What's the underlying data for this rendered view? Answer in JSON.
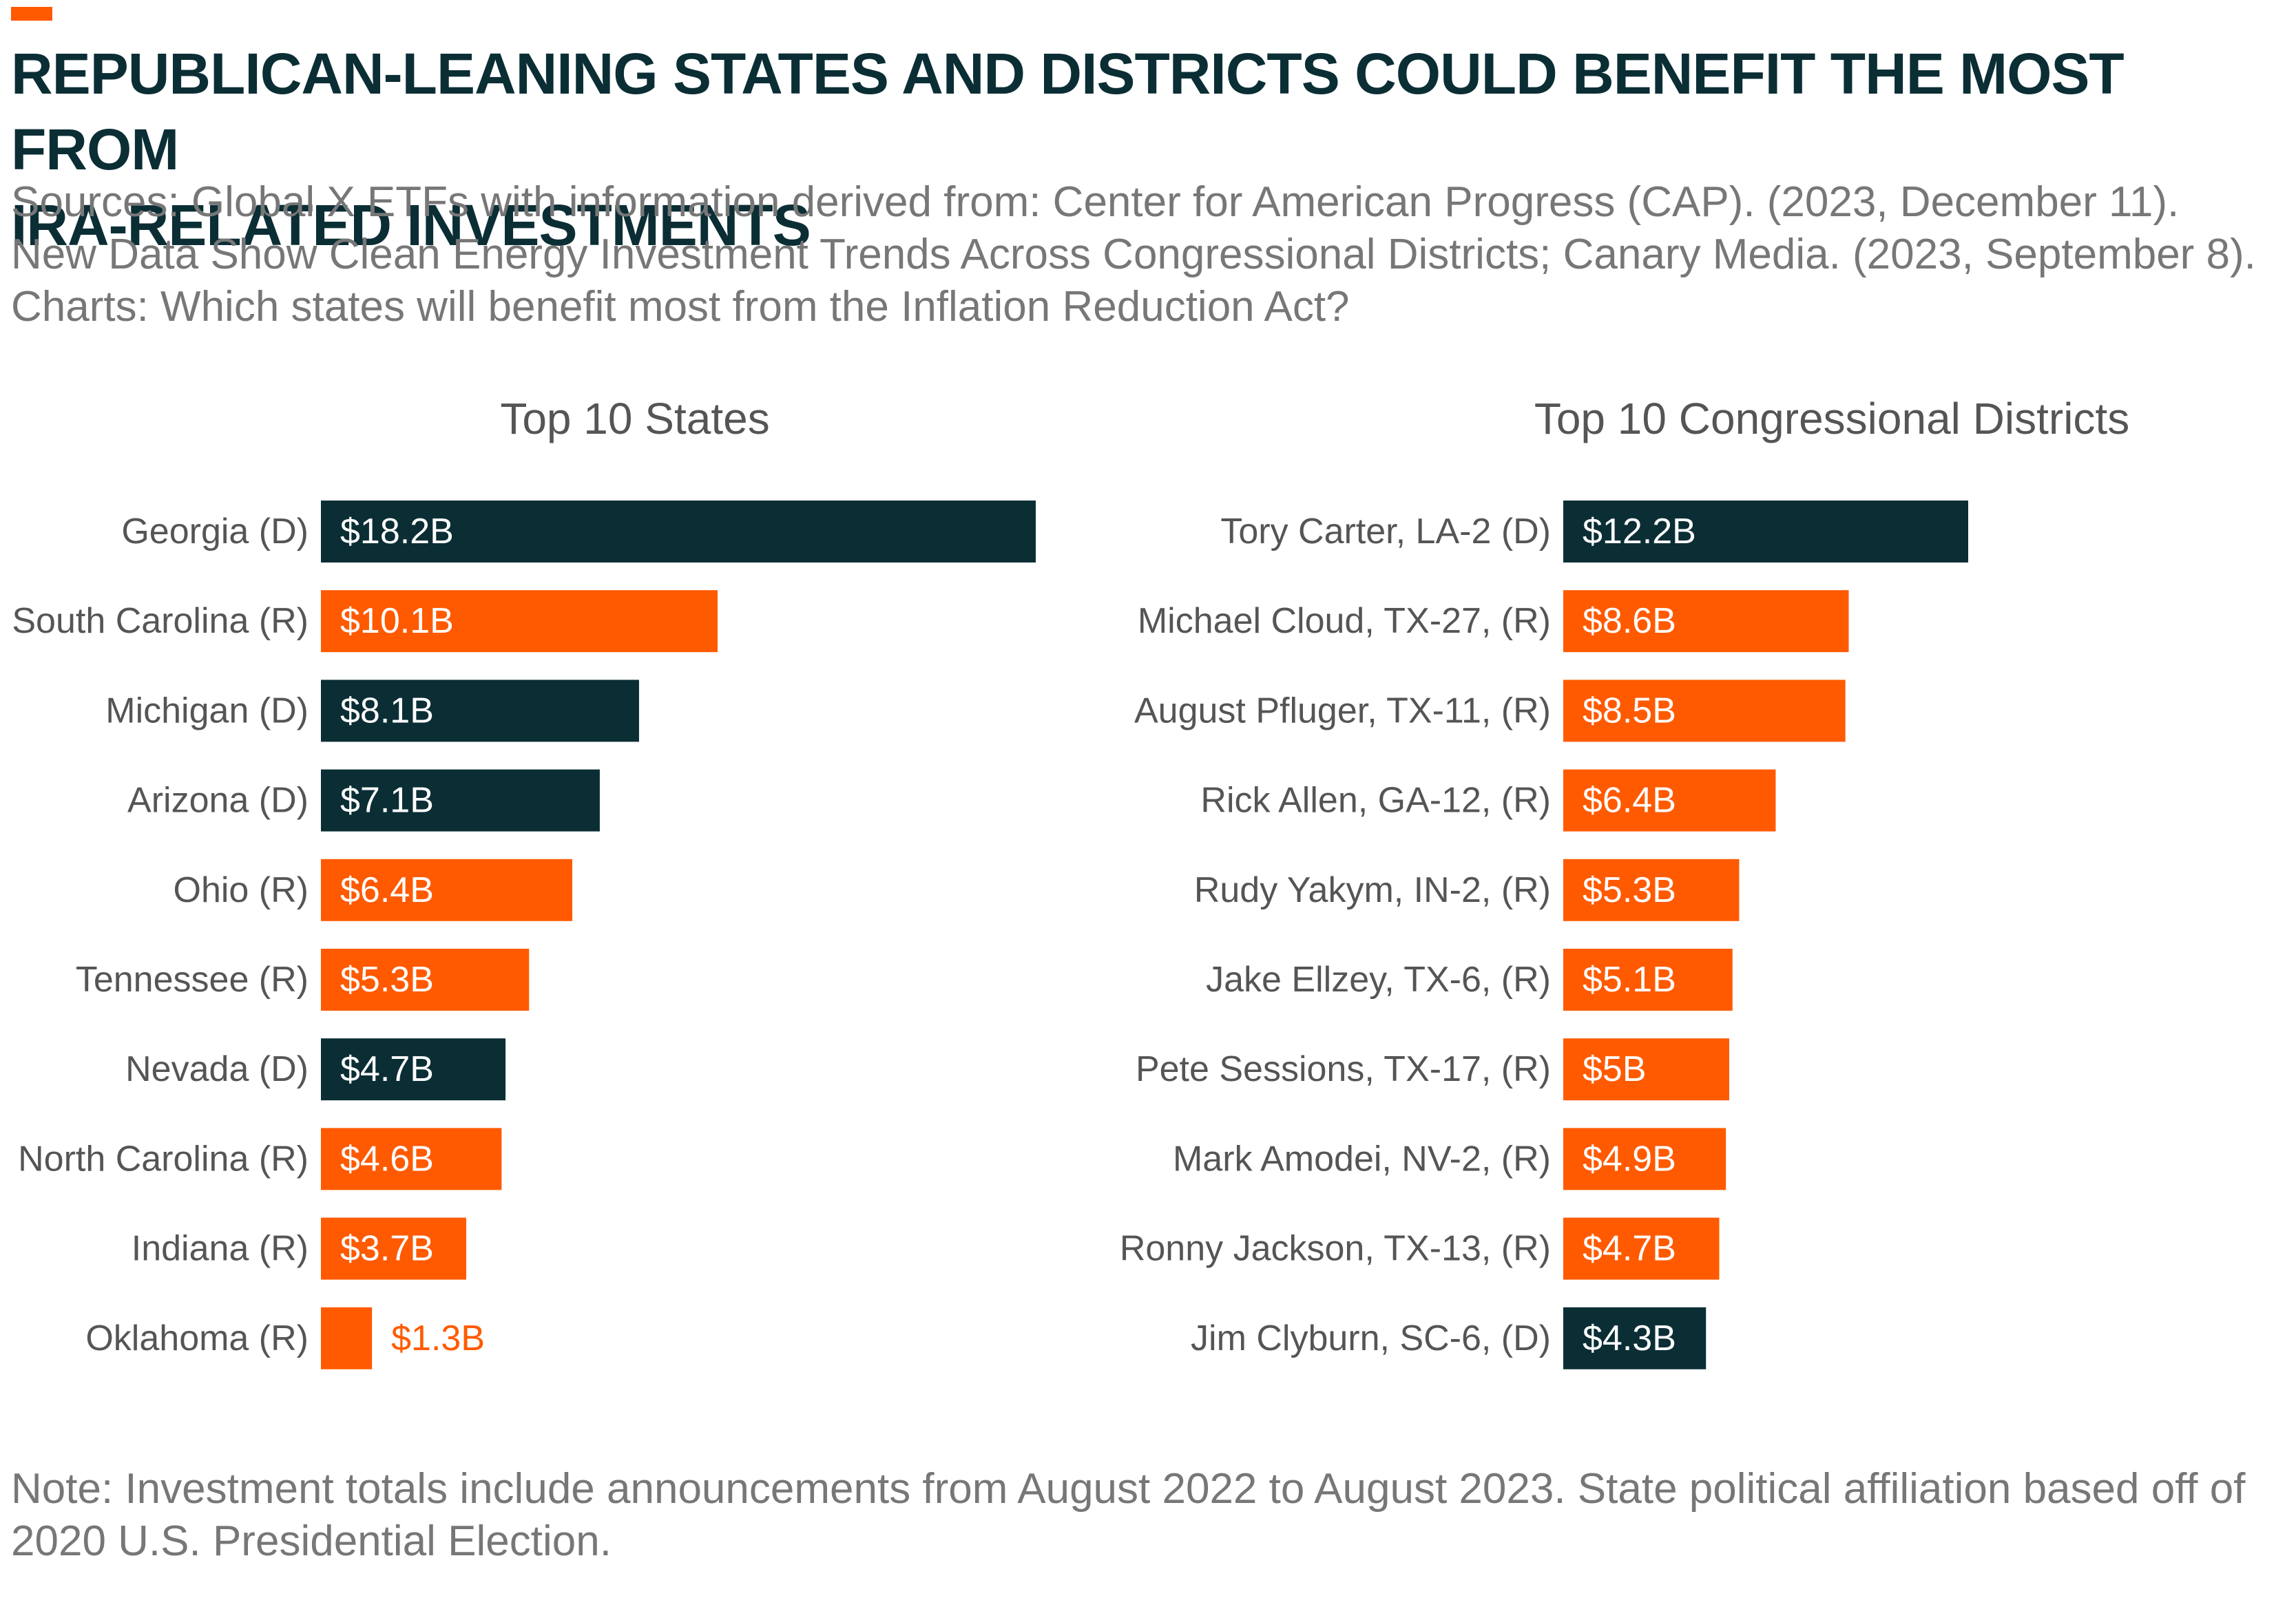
{
  "header": {
    "title_line1": "REPUBLICAN-LEANING STATES AND DISTRICTS COULD BENEFIT THE MOST FROM",
    "title_line2": "IRA-RELATED INVESTMENTS",
    "sources": [
      "Sources: Global X ETFs with information derived from: Center for American Progress (CAP). (2023, December 11).",
      "New Data Show Clean Energy Investment Trends Across Congressional Districts; Canary Media. (2023, September 8).",
      "Charts: Which states will benefit most from the Inflation Reduction Act?"
    ]
  },
  "note": {
    "line1": "Note: Investment totals include announcements from August 2022 to August 2023. State political affiliation based off of",
    "line2": "2020 U.S. Presidential Election."
  },
  "colors": {
    "democrat": "#0b2e35",
    "republican": "#ff5a00",
    "accent": "#ff5a00",
    "label_text": "#555555"
  },
  "chart_data": [
    {
      "type": "bar",
      "orientation": "horizontal",
      "title": "Top 10 States",
      "categories": [
        "Georgia (D)",
        "South Carolina (R)",
        "Michigan (D)",
        "Arizona (D)",
        "Ohio (R)",
        "Tennessee (R)",
        "Nevada (D)",
        "North Carolina (R)",
        "Indiana (R)",
        "Oklahoma (R)"
      ],
      "values": [
        18.2,
        10.1,
        8.1,
        7.1,
        6.4,
        5.3,
        4.7,
        4.6,
        3.7,
        1.3
      ],
      "labels": [
        "$18.2B",
        "$10.1B",
        "$8.1B",
        "$7.1B",
        "$6.4B",
        "$5.3B",
        "$4.7B",
        "$4.6B",
        "$3.7B",
        "$1.3B"
      ],
      "party": [
        "D",
        "R",
        "D",
        "D",
        "R",
        "R",
        "D",
        "R",
        "R",
        "R"
      ],
      "xlim": [
        0,
        18.2
      ],
      "grid": false
    },
    {
      "type": "bar",
      "orientation": "horizontal",
      "title": "Top 10 Congressional Districts",
      "categories": [
        "Tory Carter, LA-2 (D)",
        "Michael Cloud, TX-27, (R)",
        "August Pfluger, TX-11, (R)",
        "Rick Allen, GA-12, (R)",
        "Rudy Yakym, IN-2, (R)",
        "Jake Ellzey, TX-6, (R)",
        "Pete Sessions, TX-17, (R)",
        "Mark Amodei, NV-2, (R)",
        "Ronny Jackson, TX-13, (R)",
        "Jim Clyburn, SC-6, (D)"
      ],
      "values": [
        12.2,
        8.6,
        8.5,
        6.4,
        5.3,
        5.1,
        5.0,
        4.9,
        4.7,
        4.3
      ],
      "labels": [
        "$12.2B",
        "$8.6B",
        "$8.5B",
        "$6.4B",
        "$5.3B",
        "$5.1B",
        "$5B",
        "$4.9B",
        "$4.7B",
        "$4.3B"
      ],
      "party": [
        "D",
        "R",
        "R",
        "R",
        "R",
        "R",
        "R",
        "R",
        "R",
        "D"
      ],
      "xlim": [
        0,
        12.2
      ],
      "grid": false
    }
  ]
}
